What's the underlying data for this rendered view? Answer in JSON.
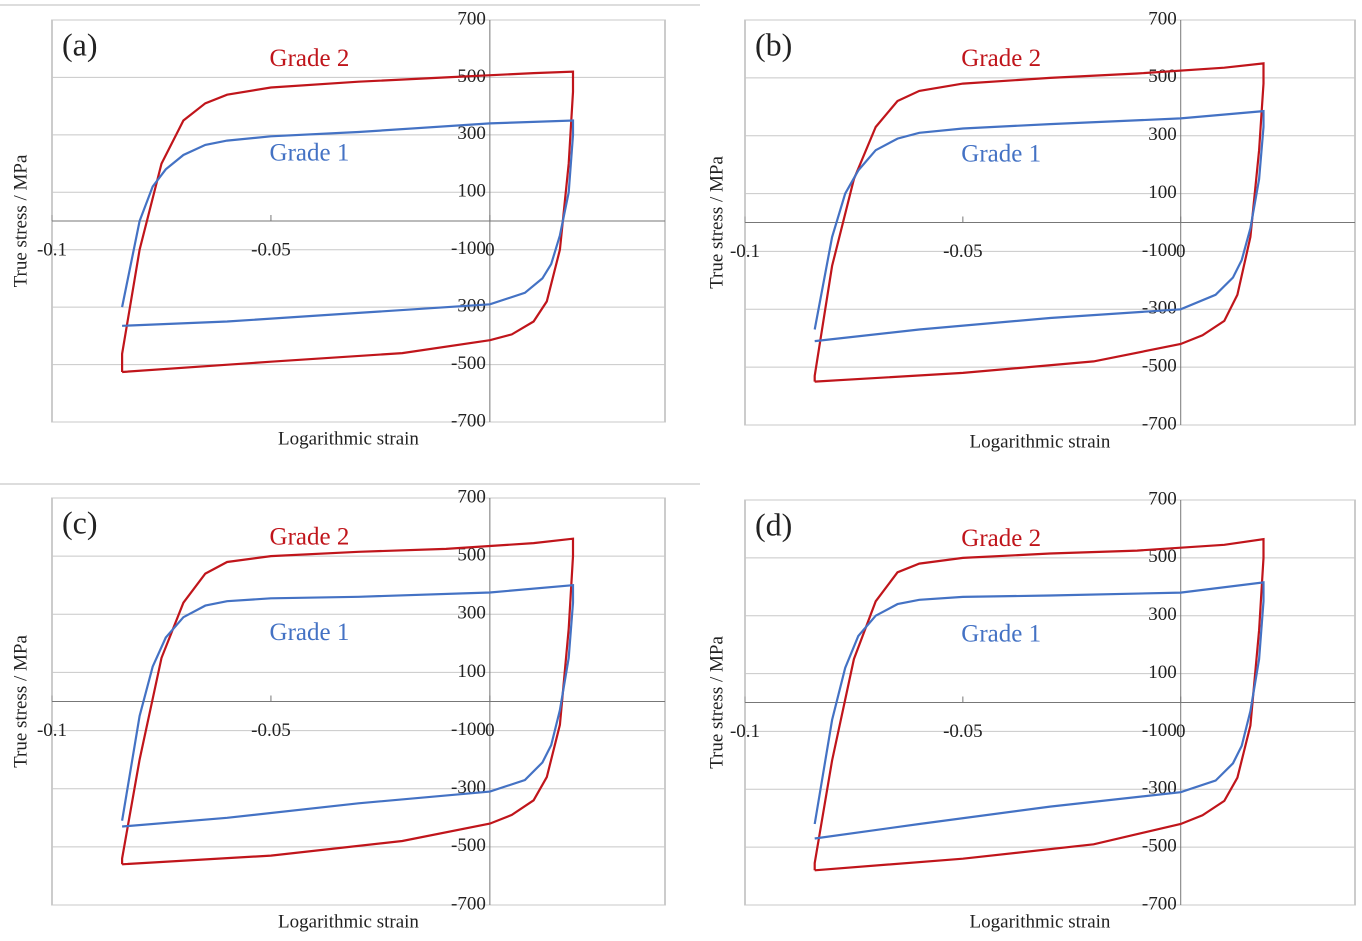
{
  "chart_data": [
    {
      "type": "line",
      "panel_label": "(a)",
      "x_label": "Logarithmic strain",
      "y_label": "True stress / MPa",
      "xlim": [
        -0.1,
        0.04
      ],
      "ylim": [
        -700,
        700
      ],
      "xticks": [
        -0.1,
        -0.05,
        0
      ],
      "yticks": [
        -700,
        -500,
        -300,
        -100,
        100,
        300,
        500,
        700
      ],
      "grid": true,
      "series": [
        {
          "name": "Grade 2",
          "color": "#c0151b",
          "x": [
            -0.084,
            -0.084,
            -0.08,
            -0.075,
            -0.07,
            -0.065,
            -0.06,
            -0.05,
            -0.03,
            -0.01,
            0.01,
            0.019,
            0.019,
            0.018,
            0.016,
            0.013,
            0.01,
            0.005,
            0,
            -0.02,
            -0.05,
            -0.084
          ],
          "values": [
            -526,
            -463,
            -100,
            200,
            350,
            410,
            440,
            465,
            485,
            500,
            515,
            520,
            450,
            200,
            -100,
            -280,
            -350,
            -395,
            -415,
            -460,
            -490,
            -526
          ]
        },
        {
          "name": "Grade 1",
          "color": "#4472c4",
          "x": [
            -0.084,
            -0.08,
            -0.077,
            -0.074,
            -0.07,
            -0.065,
            -0.06,
            -0.05,
            -0.03,
            0,
            0.019,
            0.019,
            0.018,
            0.016,
            0.014,
            0.012,
            0.008,
            0,
            -0.03,
            -0.06,
            -0.084
          ],
          "values": [
            -300,
            0,
            120,
            180,
            230,
            265,
            280,
            295,
            310,
            340,
            350,
            300,
            100,
            -50,
            -150,
            -200,
            -250,
            -290,
            -320,
            -350,
            -365
          ]
        }
      ]
    },
    {
      "type": "line",
      "panel_label": "(b)",
      "x_label": "Logarithmic strain",
      "y_label": "True stress / MPa",
      "xlim": [
        -0.1,
        0.04
      ],
      "ylim": [
        -700,
        700
      ],
      "xticks": [
        -0.1,
        -0.05,
        0
      ],
      "yticks": [
        -700,
        -500,
        -300,
        -100,
        100,
        300,
        500,
        700
      ],
      "grid": true,
      "series": [
        {
          "name": "Grade 2",
          "color": "#c0151b",
          "x": [
            -0.084,
            -0.084,
            -0.08,
            -0.075,
            -0.07,
            -0.065,
            -0.06,
            -0.05,
            -0.03,
            -0.01,
            0.01,
            0.019,
            0.019,
            0.018,
            0.016,
            0.013,
            0.01,
            0.005,
            0,
            -0.02,
            -0.05,
            -0.084
          ],
          "values": [
            -550,
            -530,
            -150,
            150,
            330,
            420,
            455,
            480,
            500,
            515,
            535,
            550,
            480,
            250,
            -50,
            -250,
            -340,
            -390,
            -420,
            -480,
            -520,
            -550
          ]
        },
        {
          "name": "Grade 1",
          "color": "#4472c4",
          "x": [
            -0.084,
            -0.08,
            -0.077,
            -0.074,
            -0.07,
            -0.065,
            -0.06,
            -0.05,
            -0.03,
            0,
            0.019,
            0.019,
            0.018,
            0.016,
            0.014,
            0.012,
            0.008,
            0,
            -0.03,
            -0.06,
            -0.084
          ],
          "values": [
            -370,
            -50,
            100,
            180,
            250,
            290,
            310,
            325,
            340,
            360,
            385,
            330,
            150,
            -20,
            -130,
            -190,
            -250,
            -300,
            -330,
            -370,
            -410
          ]
        }
      ]
    },
    {
      "type": "line",
      "panel_label": "(c)",
      "x_label": "Logarithmic strain",
      "y_label": "True stress / MPa",
      "xlim": [
        -0.1,
        0.04
      ],
      "ylim": [
        -700,
        700
      ],
      "xticks": [
        -0.1,
        -0.05,
        0
      ],
      "yticks": [
        -700,
        -500,
        -300,
        -100,
        100,
        300,
        500,
        700
      ],
      "grid": true,
      "series": [
        {
          "name": "Grade 2",
          "color": "#c0151b",
          "x": [
            -0.084,
            -0.084,
            -0.08,
            -0.075,
            -0.07,
            -0.065,
            -0.06,
            -0.05,
            -0.03,
            -0.01,
            0.01,
            0.019,
            0.019,
            0.018,
            0.016,
            0.013,
            0.01,
            0.005,
            0,
            -0.02,
            -0.05,
            -0.084
          ],
          "values": [
            -560,
            -540,
            -200,
            150,
            340,
            440,
            480,
            500,
            515,
            525,
            545,
            560,
            500,
            250,
            -80,
            -260,
            -340,
            -390,
            -420,
            -480,
            -530,
            -560
          ]
        },
        {
          "name": "Grade 1",
          "color": "#4472c4",
          "x": [
            -0.084,
            -0.08,
            -0.077,
            -0.074,
            -0.07,
            -0.065,
            -0.06,
            -0.05,
            -0.03,
            0,
            0.019,
            0.019,
            0.018,
            0.016,
            0.014,
            0.012,
            0.008,
            0,
            -0.03,
            -0.06,
            -0.084
          ],
          "values": [
            -410,
            -50,
            120,
            220,
            290,
            330,
            345,
            355,
            360,
            375,
            400,
            340,
            150,
            -30,
            -150,
            -210,
            -270,
            -310,
            -350,
            -400,
            -430
          ]
        }
      ]
    },
    {
      "type": "line",
      "panel_label": "(d)",
      "x_label": "Logarithmic strain",
      "y_label": "True stress / MPa",
      "xlim": [
        -0.1,
        0.04
      ],
      "ylim": [
        -700,
        700
      ],
      "xticks": [
        -0.1,
        -0.05,
        0
      ],
      "yticks": [
        -700,
        -500,
        -300,
        -100,
        100,
        300,
        500,
        700
      ],
      "grid": true,
      "series": [
        {
          "name": "Grade 2",
          "color": "#c0151b",
          "x": [
            -0.084,
            -0.084,
            -0.08,
            -0.075,
            -0.07,
            -0.065,
            -0.06,
            -0.05,
            -0.03,
            -0.01,
            0.01,
            0.019,
            0.019,
            0.018,
            0.016,
            0.013,
            0.01,
            0.005,
            0,
            -0.02,
            -0.05,
            -0.084
          ],
          "values": [
            -580,
            -555,
            -200,
            150,
            350,
            450,
            480,
            500,
            515,
            525,
            545,
            565,
            500,
            250,
            -80,
            -260,
            -340,
            -390,
            -420,
            -490,
            -540,
            -580
          ]
        },
        {
          "name": "Grade 1",
          "color": "#4472c4",
          "x": [
            -0.084,
            -0.08,
            -0.077,
            -0.074,
            -0.07,
            -0.065,
            -0.06,
            -0.05,
            -0.03,
            0,
            0.019,
            0.019,
            0.018,
            0.016,
            0.014,
            0.012,
            0.008,
            0,
            -0.03,
            -0.06,
            -0.084
          ],
          "values": [
            -420,
            -60,
            120,
            230,
            300,
            340,
            355,
            365,
            370,
            380,
            415,
            350,
            150,
            -30,
            -150,
            -210,
            -270,
            -310,
            -360,
            -420,
            -470
          ]
        }
      ]
    }
  ]
}
